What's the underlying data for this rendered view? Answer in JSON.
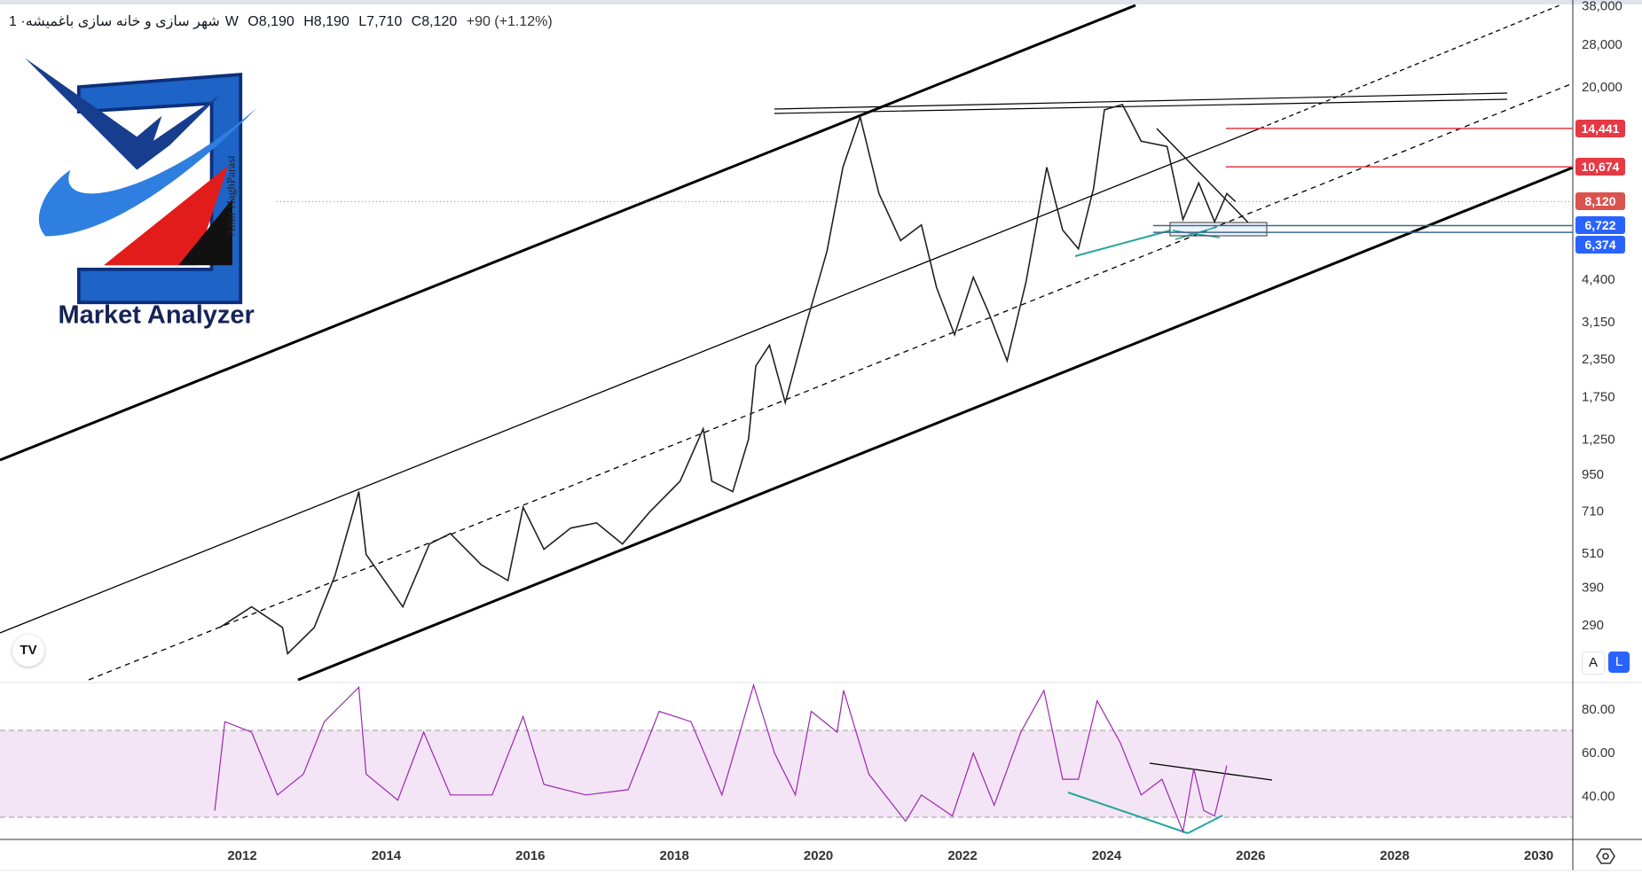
{
  "header": {
    "symbol": "شهر سازی و خانه سازی باغمیشه",
    "interval": "· 1W",
    "open": "O8,190",
    "high": "H8,190",
    "low": "L7,710",
    "close": "C8,120",
    "change": "+90 (+1.12%)"
  },
  "logo": {
    "brand": "Market Analyzer",
    "author": "Amir HaghParast"
  },
  "tv_logo": "TV",
  "scale_buttons": {
    "auto": "A",
    "log": "L"
  },
  "colors": {
    "rsi_line": "#9c27b0",
    "rsi_band": "#f3e5f5",
    "resistance": "#e53945",
    "support": "#2962ff",
    "last_price": "#d9534f",
    "divergence": "#26a69a"
  },
  "price_labels": [
    {
      "value": "14,441",
      "price": 14441,
      "color": "#e53945",
      "kind": "resistance"
    },
    {
      "value": "10,674",
      "price": 10674,
      "color": "#e53945",
      "kind": "resistance"
    },
    {
      "value": "8,120",
      "price": 8120,
      "color": "#d9534f",
      "kind": "last"
    },
    {
      "value": "6,722",
      "price": 6722,
      "color": "#2962ff",
      "kind": "support"
    },
    {
      "value": "6,374",
      "price": 6374,
      "color": "#2962ff",
      "kind": "support"
    }
  ],
  "chart_data": [
    {
      "type": "line",
      "title": "شهر سازی و خانه سازی باغمیشه · 1W",
      "yscale": "log",
      "ylim": [
        230,
        38000
      ],
      "xlim": [
        2009.6,
        2031.1
      ],
      "y_ticks": [
        "38,000",
        "28,000",
        "20,000",
        "4,400",
        "3,150",
        "2,350",
        "1,750",
        "1,250",
        "950",
        "710",
        "510",
        "390",
        "290"
      ],
      "y_tick_values": [
        38000,
        28000,
        20000,
        4400,
        3150,
        2350,
        1750,
        1250,
        950,
        710,
        510,
        390,
        290
      ],
      "x_ticks": [
        "2012",
        "2014",
        "2016",
        "2018",
        "2020",
        "2022",
        "2024",
        "2026",
        "2028",
        "2030"
      ],
      "grid": false,
      "series": [
        {
          "x": [
            2011.69,
            2012.13,
            2012.56,
            2012.63,
            2013.0,
            2013.29,
            2013.62,
            2013.72,
            2014.23,
            2014.6,
            2014.89,
            2015.32,
            2015.69,
            2015.9,
            2016.19,
            2016.56,
            2016.92,
            2017.28,
            2017.65,
            2018.08,
            2018.4,
            2018.52,
            2018.81,
            2019.03,
            2019.13,
            2019.32,
            2019.54,
            2019.83,
            2020.12,
            2020.34,
            2020.58,
            2020.84,
            2021.14,
            2021.43,
            2021.64,
            2021.89,
            2022.15,
            2022.37,
            2022.62,
            2022.88,
            2023.17,
            2023.39,
            2023.61,
            2023.82,
            2023.97,
            2024.22,
            2024.48,
            2024.84,
            2025.06,
            2025.28,
            2025.5,
            2025.67,
            2025.79
          ],
          "y": [
            284,
            334,
            284,
            231,
            284,
            428,
            828,
            505,
            334,
            548,
            595,
            465,
            411,
            732,
            526,
            621,
            647,
            548,
            702,
            899,
            1357,
            899,
            828,
            1250,
            2223,
            2622,
            1668,
            3090,
            5501,
            10634,
            15786,
            8653,
            5974,
            6759,
            4124,
            2846,
            4477,
            3358,
            2318,
            4298,
            10634,
            6489,
            5592,
            9018,
            16714,
            17428,
            13058,
            12530,
            7045,
            9395,
            6926,
            8653,
            8120
          ]
        }
      ]
    },
    {
      "type": "line",
      "title": "RSI",
      "ylim": [
        20,
        95
      ],
      "y_ticks": [
        "80.00",
        "60.00",
        "40.00"
      ],
      "y_tick_values": [
        80,
        60,
        40
      ],
      "band": [
        30,
        70
      ],
      "series": [
        {
          "x": [
            2011.62,
            2011.76,
            2012.13,
            2012.49,
            2012.85,
            2013.14,
            2013.62,
            2013.72,
            2014.16,
            2014.52,
            2014.89,
            2015.47,
            2015.9,
            2016.19,
            2016.77,
            2017.36,
            2017.79,
            2018.23,
            2018.66,
            2019.1,
            2019.39,
            2019.68,
            2019.9,
            2020.26,
            2020.35,
            2020.7,
            2021.21,
            2021.43,
            2021.86,
            2022.15,
            2022.44,
            2022.81,
            2023.13,
            2023.39,
            2023.61,
            2023.87,
            2024.19,
            2024.48,
            2024.77,
            2025.06,
            2025.21,
            2025.35,
            2025.5,
            2025.67
          ],
          "y": [
            33.3,
            74.2,
            69.4,
            40.5,
            50.1,
            74.2,
            90.1,
            50.1,
            38.1,
            69.4,
            40.5,
            40.5,
            76.6,
            45.3,
            40.5,
            42.9,
            79.0,
            74.2,
            40.5,
            91.1,
            59.8,
            40.5,
            79.0,
            69.4,
            88.6,
            50.1,
            28.4,
            40.5,
            30.8,
            59.8,
            35.7,
            69.4,
            88.6,
            47.7,
            47.7,
            83.8,
            64.6,
            40.5,
            47.7,
            23.6,
            52.5,
            33.3,
            30.8,
            54.0
          ]
        }
      ]
    }
  ]
}
